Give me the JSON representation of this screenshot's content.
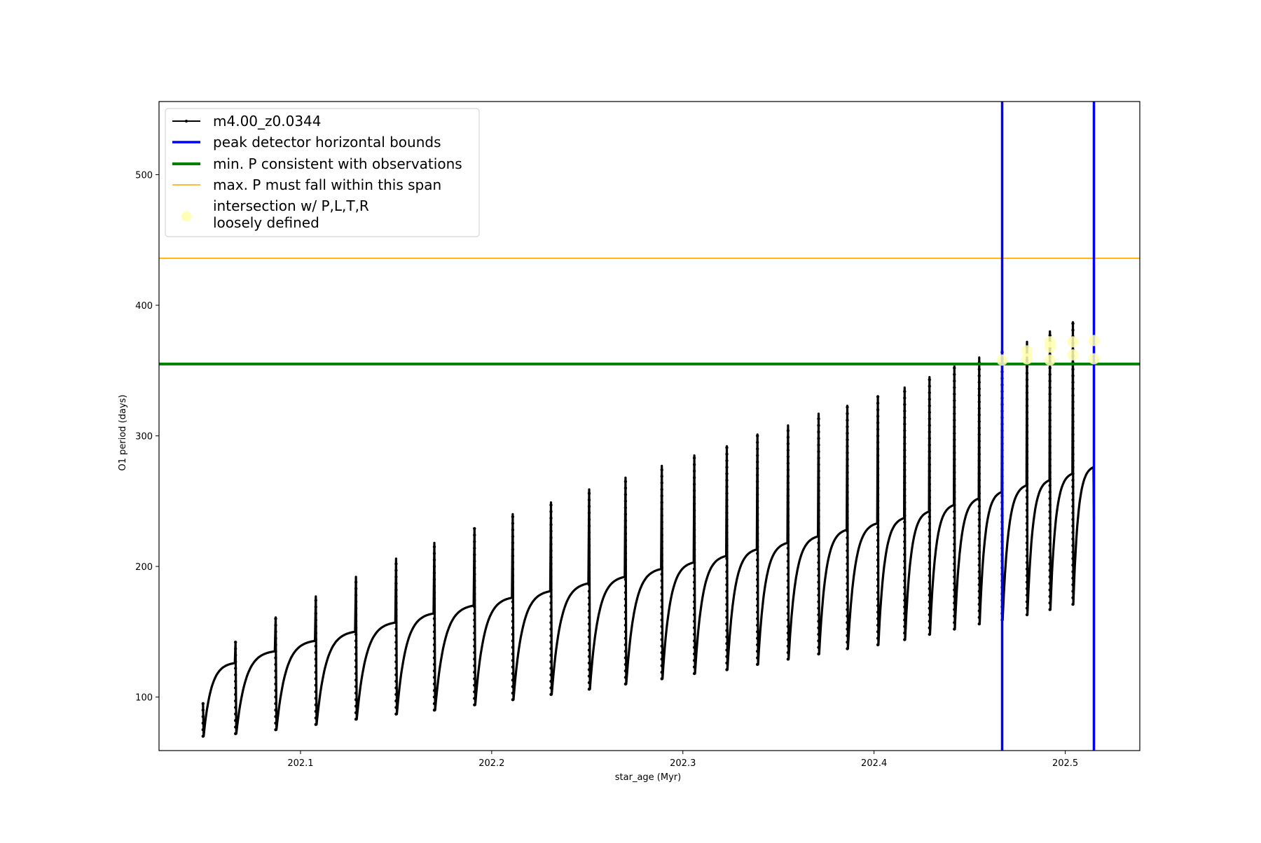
{
  "chart_data": {
    "type": "line",
    "title": "",
    "xlabel": "star_age (Myr)",
    "ylabel": "O1 period (days)",
    "xlim": [
      202.026,
      202.539
    ],
    "ylim": [
      59,
      556
    ],
    "xticks": [
      202.1,
      202.2,
      202.3,
      202.4,
      202.5
    ],
    "yticks": [
      100,
      200,
      300,
      400,
      500
    ],
    "grid": false,
    "legend_position": "upper-left",
    "legend": [
      {
        "label": "m4.00_z0.0344",
        "kind": "series"
      },
      {
        "label": "peak detector horizontal bounds",
        "kind": "vline"
      },
      {
        "label": "min. P consistent with observations",
        "kind": "hline-min"
      },
      {
        "label": "max. P must fall within this span",
        "kind": "hline-max"
      },
      {
        "label": "intersection w/ P,L,T,R\nloosely defined",
        "kind": "marker"
      }
    ],
    "colors": {
      "series": "#000000",
      "bounds": "#0000ff",
      "min_period": "#008000",
      "max_period": "#ffa500",
      "intersection": "#ffffb3"
    },
    "reference_lines": {
      "vertical_bounds_x": [
        202.467,
        202.515
      ],
      "min_period_y": 355,
      "max_period_y": 436
    },
    "series": [
      {
        "name": "m4.00_z0.0344",
        "pulses": [
          {
            "start": 202.049,
            "end": 202.066,
            "base": 70,
            "peak": 126,
            "spike": 95,
            "dip": 70
          },
          {
            "start": 202.066,
            "end": 202.087,
            "base": 72,
            "peak": 135,
            "spike": 142,
            "dip": 72
          },
          {
            "start": 202.087,
            "end": 202.108,
            "base": 75,
            "peak": 143,
            "spike": 161,
            "dip": 75
          },
          {
            "start": 202.108,
            "end": 202.129,
            "base": 79,
            "peak": 150,
            "spike": 177,
            "dip": 79
          },
          {
            "start": 202.129,
            "end": 202.15,
            "base": 83,
            "peak": 157,
            "spike": 192,
            "dip": 83
          },
          {
            "start": 202.15,
            "end": 202.17,
            "base": 87,
            "peak": 164,
            "spike": 206,
            "dip": 87
          },
          {
            "start": 202.17,
            "end": 202.191,
            "base": 90,
            "peak": 170,
            "spike": 218,
            "dip": 90
          },
          {
            "start": 202.191,
            "end": 202.211,
            "base": 94,
            "peak": 176,
            "spike": 229,
            "dip": 94
          },
          {
            "start": 202.211,
            "end": 202.231,
            "base": 98,
            "peak": 181,
            "spike": 240,
            "dip": 98
          },
          {
            "start": 202.231,
            "end": 202.251,
            "base": 102,
            "peak": 187,
            "spike": 249,
            "dip": 102
          },
          {
            "start": 202.251,
            "end": 202.27,
            "base": 106,
            "peak": 192,
            "spike": 259,
            "dip": 106
          },
          {
            "start": 202.27,
            "end": 202.289,
            "base": 110,
            "peak": 198,
            "spike": 268,
            "dip": 110
          },
          {
            "start": 202.289,
            "end": 202.306,
            "base": 114,
            "peak": 203,
            "spike": 277,
            "dip": 114
          },
          {
            "start": 202.306,
            "end": 202.323,
            "base": 118,
            "peak": 208,
            "spike": 285,
            "dip": 118
          },
          {
            "start": 202.323,
            "end": 202.339,
            "base": 121,
            "peak": 213,
            "spike": 292,
            "dip": 121
          },
          {
            "start": 202.339,
            "end": 202.355,
            "base": 125,
            "peak": 218,
            "spike": 301,
            "dip": 125
          },
          {
            "start": 202.355,
            "end": 202.371,
            "base": 129,
            "peak": 223,
            "spike": 308,
            "dip": 129
          },
          {
            "start": 202.371,
            "end": 202.386,
            "base": 133,
            "peak": 228,
            "spike": 317,
            "dip": 133
          },
          {
            "start": 202.386,
            "end": 202.402,
            "base": 137,
            "peak": 233,
            "spike": 323,
            "dip": 137
          },
          {
            "start": 202.402,
            "end": 202.416,
            "base": 140,
            "peak": 237,
            "spike": 330,
            "dip": 140
          },
          {
            "start": 202.416,
            "end": 202.429,
            "base": 144,
            "peak": 242,
            "spike": 337,
            "dip": 144
          },
          {
            "start": 202.429,
            "end": 202.442,
            "base": 148,
            "peak": 247,
            "spike": 345,
            "dip": 148
          },
          {
            "start": 202.442,
            "end": 202.455,
            "base": 152,
            "peak": 252,
            "spike": 353,
            "dip": 152
          },
          {
            "start": 202.455,
            "end": 202.467,
            "base": 156,
            "peak": 257,
            "spike": 360,
            "dip": 156
          },
          {
            "start": 202.467,
            "end": 202.48,
            "base": 159,
            "peak": 262,
            "spike": 366,
            "dip": 159
          },
          {
            "start": 202.48,
            "end": 202.492,
            "base": 163,
            "peak": 266,
            "spike": 372,
            "dip": 163
          },
          {
            "start": 202.492,
            "end": 202.504,
            "base": 167,
            "peak": 271,
            "spike": 380,
            "dip": 167
          },
          {
            "start": 202.504,
            "end": 202.515,
            "base": 171,
            "peak": 276,
            "spike": 387,
            "dip": 171
          }
        ]
      }
    ],
    "intersections": [
      {
        "x": 202.467,
        "y": 358
      },
      {
        "x": 202.48,
        "y": 365
      },
      {
        "x": 202.48,
        "y": 359
      },
      {
        "x": 202.492,
        "y": 372
      },
      {
        "x": 202.492,
        "y": 368
      },
      {
        "x": 202.492,
        "y": 358
      },
      {
        "x": 202.504,
        "y": 372
      },
      {
        "x": 202.504,
        "y": 362
      },
      {
        "x": 202.515,
        "y": 373
      },
      {
        "x": 202.515,
        "y": 359
      }
    ]
  }
}
